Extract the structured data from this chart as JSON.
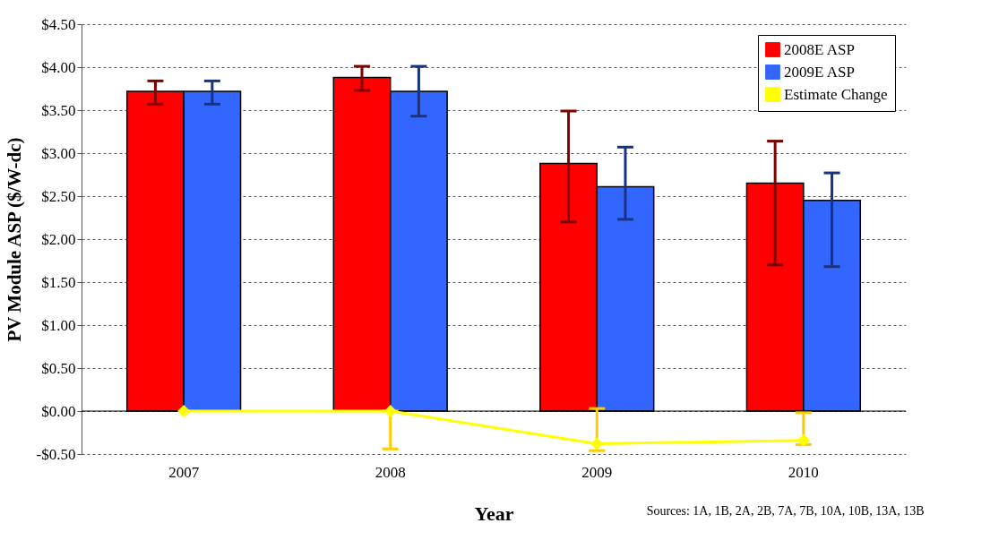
{
  "chart_data": {
    "type": "bar",
    "xlabel": "Year",
    "ylabel": "PV Module ASP ($/W-dc)",
    "categories": [
      "2007",
      "2008",
      "2009",
      "2010"
    ],
    "series": [
      {
        "name": "2008E ASP",
        "color": "#ff0000",
        "values": [
          3.72,
          3.88,
          2.88,
          2.65
        ],
        "errors": [
          [
            3.57,
            3.84
          ],
          [
            3.73,
            4.01
          ],
          [
            2.2,
            3.49
          ],
          [
            1.7,
            3.14
          ]
        ]
      },
      {
        "name": "2009E ASP",
        "color": "#3366ff",
        "values": [
          3.72,
          3.72,
          2.61,
          2.45
        ],
        "errors": [
          [
            3.57,
            3.84
          ],
          [
            3.43,
            4.01
          ],
          [
            2.23,
            3.07
          ],
          [
            1.68,
            2.77
          ]
        ]
      },
      {
        "name": "Estimate Change",
        "type": "line",
        "color": "#ffff00",
        "marker": "diamond",
        "values": [
          0,
          0,
          -0.38,
          -0.34
        ],
        "errors": [
          null,
          [
            -0.44,
            0
          ],
          [
            -0.46,
            0.03
          ],
          [
            -0.39,
            -0.02
          ]
        ]
      }
    ],
    "ylim": [
      -0.5,
      4.5
    ],
    "yticks": [
      {
        "value": -0.5,
        "label": "-$0.50"
      },
      {
        "value": 0,
        "label": "$0.00"
      },
      {
        "value": 0.5,
        "label": "$0.50"
      },
      {
        "value": 1,
        "label": "$1.00"
      },
      {
        "value": 1.5,
        "label": "$1.50"
      },
      {
        "value": 2,
        "label": "$2.00"
      },
      {
        "value": 2.5,
        "label": "$2.50"
      },
      {
        "value": 3,
        "label": "$3.00"
      },
      {
        "value": 3.5,
        "label": "$3.50"
      },
      {
        "value": 4,
        "label": "$4.00"
      },
      {
        "value": 4.5,
        "label": "$4.50"
      }
    ],
    "grid": "y",
    "legend": "top right",
    "annotations": [
      "Sources: 1A, 1B, 2A, 2B, 7A, 7B, 10A, 10B, 13A, 13B"
    ]
  }
}
